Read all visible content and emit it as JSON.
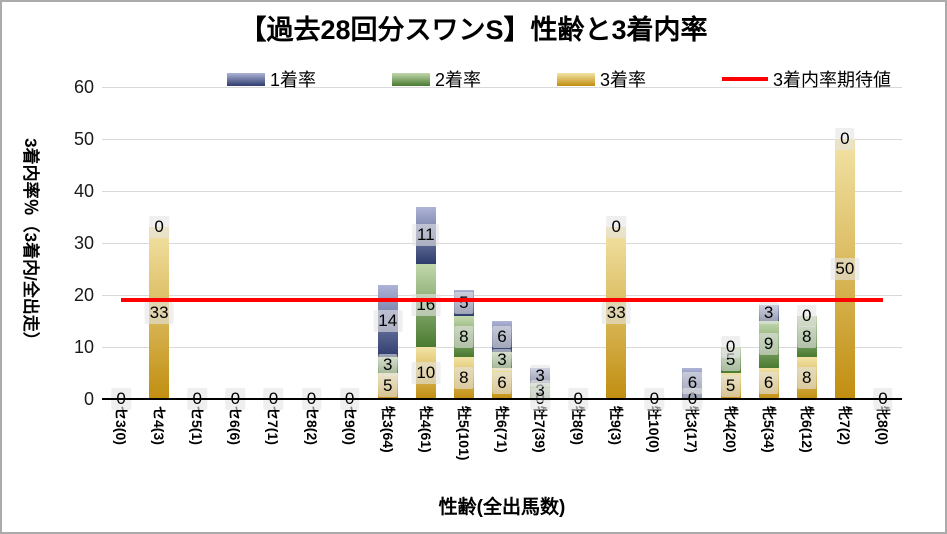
{
  "chart_data": {
    "type": "bar",
    "stacked": true,
    "title": "【過去28回分スワンS】性齢と3着内率",
    "xlabel": "性齢(全出馬数)",
    "ylabel": "3着内率％（3着内/全出走）",
    "ylim": [
      0,
      60
    ],
    "yticks": [
      0,
      10,
      20,
      30,
      40,
      50,
      60
    ],
    "grid": true,
    "legend_position": "top-center",
    "categories": [
      "セ3(0)",
      "セ4(3)",
      "セ5(1)",
      "セ6(6)",
      "セ7(1)",
      "セ8(2)",
      "セ9(0)",
      "牡3(64)",
      "牡4(61)",
      "牡5(101)",
      "牡6(71)",
      "牡7(39)",
      "牡8(9)",
      "牡9(3)",
      "牡10(0)",
      "牝3(17)",
      "牝4(20)",
      "牝5(34)",
      "牝6(12)",
      "牝7(2)",
      "牝8(0)"
    ],
    "series": [
      {
        "name": "3着率",
        "stack_position": "bottom",
        "color_top": "#F2E3A6",
        "color_bottom": "#C18E10",
        "values": [
          0,
          33,
          0,
          0,
          0,
          0,
          0,
          5,
          10,
          8,
          6,
          0,
          0,
          33,
          0,
          0,
          5,
          6,
          8,
          50,
          0
        ]
      },
      {
        "name": "2着率",
        "stack_position": "middle",
        "color_top": "#C2D8AC",
        "color_bottom": "#4A7A31",
        "values": [
          0,
          0,
          0,
          0,
          0,
          0,
          0,
          3,
          16,
          8,
          3,
          3,
          0,
          0,
          0,
          0,
          5,
          9,
          8,
          0,
          0
        ]
      },
      {
        "name": "1着率",
        "stack_position": "top",
        "color_top": "#AEB4D6",
        "color_bottom": "#2E3C6D",
        "values": [
          0,
          0,
          0,
          0,
          0,
          0,
          0,
          14,
          11,
          5,
          6,
          3,
          0,
          0,
          0,
          6,
          0,
          3,
          0,
          0,
          0
        ]
      }
    ],
    "expected_line": {
      "name": "3着内率期待値",
      "color": "#FF0000",
      "value": 19
    },
    "legend": [
      {
        "label": "1着率",
        "type": "bar",
        "color_top": "#AEB4D6",
        "color_bottom": "#2E3C6D"
      },
      {
        "label": "2着率",
        "type": "bar",
        "color_top": "#C2D8AC",
        "color_bottom": "#4A7A31"
      },
      {
        "label": "3着率",
        "type": "bar",
        "color_top": "#F2E3A6",
        "color_bottom": "#C18E10"
      },
      {
        "label": "3着内率期待値",
        "type": "line",
        "color": "#FF0000"
      }
    ],
    "colors": {
      "gridline": "#d9d9d9",
      "axis": "#000000",
      "frame_border": "#ababab"
    }
  }
}
